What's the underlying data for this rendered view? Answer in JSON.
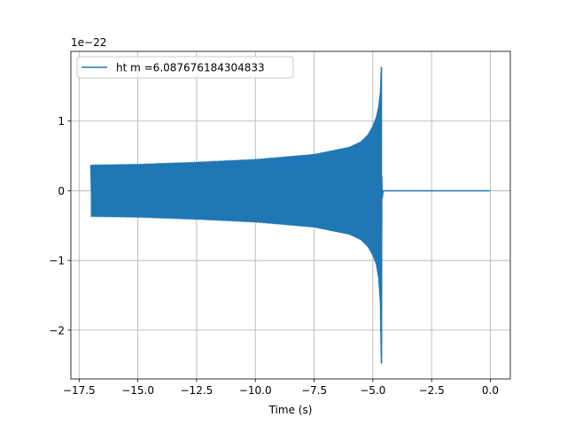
{
  "chart_data": {
    "type": "line",
    "title": "",
    "xlabel": "Time (s)",
    "ylabel": "",
    "offset_text": "1e−22",
    "xlim": [
      -17.85,
      0.85
    ],
    "ylim": [
      -2.7,
      2.0
    ],
    "grid": true,
    "legend_position": "top-left",
    "x_ticks": [
      -17.5,
      -15.0,
      -12.5,
      -10.0,
      -7.5,
      -5.0,
      -2.5,
      0.0
    ],
    "x_tick_labels": [
      "−17.5",
      "−15.0",
      "−12.5",
      "−10.0",
      "−7.5",
      "−5.0",
      "−2.5",
      "0.0"
    ],
    "y_ticks": [
      1,
      0,
      -1,
      -2
    ],
    "y_tick_labels": [
      "1",
      "0",
      "−1",
      "−2"
    ],
    "series": [
      {
        "name": "ht m =6.087676184304833",
        "color": "#1f77b4",
        "start_time": -17.0,
        "merger_time": -4.63,
        "end_time": 0.0,
        "upper_envelope": [
          [
            -17.0,
            0.37
          ],
          [
            -15.0,
            0.38
          ],
          [
            -12.5,
            0.41
          ],
          [
            -10.0,
            0.45
          ],
          [
            -7.5,
            0.52
          ],
          [
            -6.0,
            0.62
          ],
          [
            -5.5,
            0.7
          ],
          [
            -5.2,
            0.8
          ],
          [
            -5.0,
            0.92
          ],
          [
            -4.85,
            1.05
          ],
          [
            -4.75,
            1.2
          ],
          [
            -4.68,
            1.4
          ],
          [
            -4.64,
            1.77
          ]
        ],
        "lower_envelope": [
          [
            -17.0,
            -0.37
          ],
          [
            -15.0,
            -0.38
          ],
          [
            -12.5,
            -0.41
          ],
          [
            -10.0,
            -0.45
          ],
          [
            -7.5,
            -0.52
          ],
          [
            -6.0,
            -0.62
          ],
          [
            -5.5,
            -0.7
          ],
          [
            -5.2,
            -0.8
          ],
          [
            -5.0,
            -0.92
          ],
          [
            -4.85,
            -1.05
          ],
          [
            -4.75,
            -1.25
          ],
          [
            -4.68,
            -1.6
          ],
          [
            -4.64,
            -2.47
          ]
        ]
      }
    ]
  }
}
